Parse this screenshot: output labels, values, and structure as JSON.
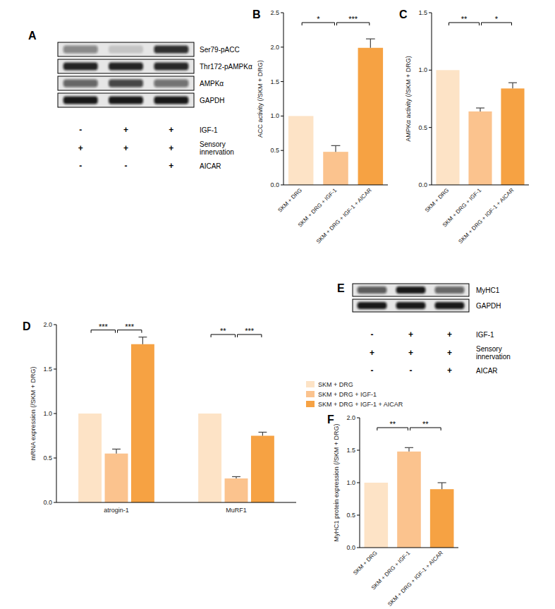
{
  "blots": [
    {
      "panel_label": "A",
      "bands": [
        "Ser79-pACC",
        "Thr172-pAMPKα",
        "AMPKα",
        "GAPDH"
      ],
      "conditions": [
        {
          "label": "IGF-1",
          "values": [
            "-",
            "+",
            "+"
          ]
        },
        {
          "label": "Sensory innervation",
          "values": [
            "+",
            "+",
            "+"
          ]
        },
        {
          "label": "AICAR",
          "values": [
            "-",
            "-",
            "+"
          ]
        }
      ]
    },
    {
      "panel_label": "E",
      "bands": [
        "MyHC1",
        "GAPDH"
      ],
      "conditions": [
        {
          "label": "IGF-1",
          "values": [
            "-",
            "+",
            "+"
          ]
        },
        {
          "label": "Sensory innervation",
          "values": [
            "+",
            "+",
            "+"
          ]
        },
        {
          "label": "AICAR",
          "values": [
            "-",
            "-",
            "+"
          ]
        }
      ]
    }
  ],
  "chart_data": [
    {
      "type": "bar",
      "panel_label": "B",
      "y_label": "ACC activity (/SKM + DRG)",
      "categories": [
        "SKM + DRG",
        "SKM + DRG + IGF-1",
        "SKM + DRG + IGF-1 + AICAR"
      ],
      "values": [
        1,
        0.48,
        1.99
      ],
      "errors": [
        null,
        0.09,
        0.13
      ],
      "colors": [
        "#fde3c6",
        "#fbc38e",
        "#f6a243"
      ],
      "ylim": [
        0,
        2.5
      ],
      "yticks": [
        {
          "value": 0,
          "label": "0.0"
        },
        0.5,
        {
          "value": 1,
          "label": "1.0"
        },
        1.5,
        {
          "value": 2,
          "label": "2.0"
        },
        2.5
      ],
      "annotations": [
        {
          "from": 0,
          "to": 1,
          "text": "*"
        },
        {
          "from": 1,
          "to": 2,
          "text": "***"
        }
      ]
    },
    {
      "type": "bar",
      "panel_label": "C",
      "y_label": "AMPKα activity (/SKM + DRG)",
      "categories": [
        "SKM + DRG",
        "SKM + DRG + IGF-1",
        "SKM + DRG + IGF-1 + AICAR"
      ],
      "values": [
        1,
        0.64,
        0.84
      ],
      "errors": [
        null,
        0.03,
        0.05
      ],
      "colors": [
        "#fde3c6",
        "#fbc38e",
        "#f6a243"
      ],
      "ylim": [
        0,
        1.5
      ],
      "yticks": [
        {
          "value": 0,
          "label": "0.0"
        },
        0.5,
        {
          "value": 1,
          "label": "1.0"
        },
        1.5
      ],
      "annotations": [
        {
          "from": 0,
          "to": 1,
          "text": "**"
        },
        {
          "from": 1,
          "to": 2,
          "text": "*"
        }
      ]
    },
    {
      "type": "bar",
      "panel_label": "D",
      "y_label": "mRNA expression (/SKM + DRG)",
      "categories": [
        "atrogin-1",
        "MuRF1"
      ],
      "series": [
        {
          "name": "SKM + DRG",
          "color": "#fde3c6",
          "values": [
            1,
            1
          ],
          "errors": [
            null,
            null
          ]
        },
        {
          "name": "SKM + DRG + IGF-1",
          "color": "#fbc38e",
          "values": [
            0.55,
            0.27
          ],
          "errors": [
            0.05,
            0.02
          ]
        },
        {
          "name": "SKM + DRG + IGF-1 + AICAR",
          "color": "#f6a243",
          "values": [
            1.78,
            0.75
          ],
          "errors": [
            0.08,
            0.04
          ]
        }
      ],
      "legend": "right",
      "ylim": [
        0,
        2
      ],
      "yticks": [
        {
          "value": 0,
          "label": "0.0"
        },
        0.5,
        {
          "value": 1,
          "label": "1.0"
        },
        1.5,
        {
          "value": 2,
          "label": "2.0"
        }
      ],
      "annotations": [
        {
          "category": 0,
          "from": 0,
          "to": 1,
          "text": "***"
        },
        {
          "category": 0,
          "from": 1,
          "to": 2,
          "text": "***"
        },
        {
          "category": 1,
          "from": 0,
          "to": 1,
          "text": "**"
        },
        {
          "category": 1,
          "from": 1,
          "to": 2,
          "text": "***"
        }
      ]
    },
    {
      "type": "bar",
      "panel_label": "F",
      "y_label": "MyHC1 protein expression (/SKM + DRG)",
      "categories": [
        "SKM + DRG",
        "SKM + DRG + IGF-1",
        "SKM + DRG + IGF-1 + AICAR"
      ],
      "values": [
        1,
        1.48,
        0.9
      ],
      "errors": [
        null,
        0.06,
        0.1
      ],
      "colors": [
        "#fde3c6",
        "#fbc38e",
        "#f6a243"
      ],
      "ylim": [
        0,
        2
      ],
      "yticks": [
        {
          "value": 0,
          "label": "0.0"
        },
        0.5,
        {
          "value": 1,
          "label": "1.0"
        },
        1.5,
        {
          "value": 2,
          "label": "2.0"
        }
      ],
      "annotations": [
        {
          "from": 0,
          "to": 1,
          "text": "**"
        },
        {
          "from": 1,
          "to": 2,
          "text": "**"
        }
      ]
    }
  ]
}
